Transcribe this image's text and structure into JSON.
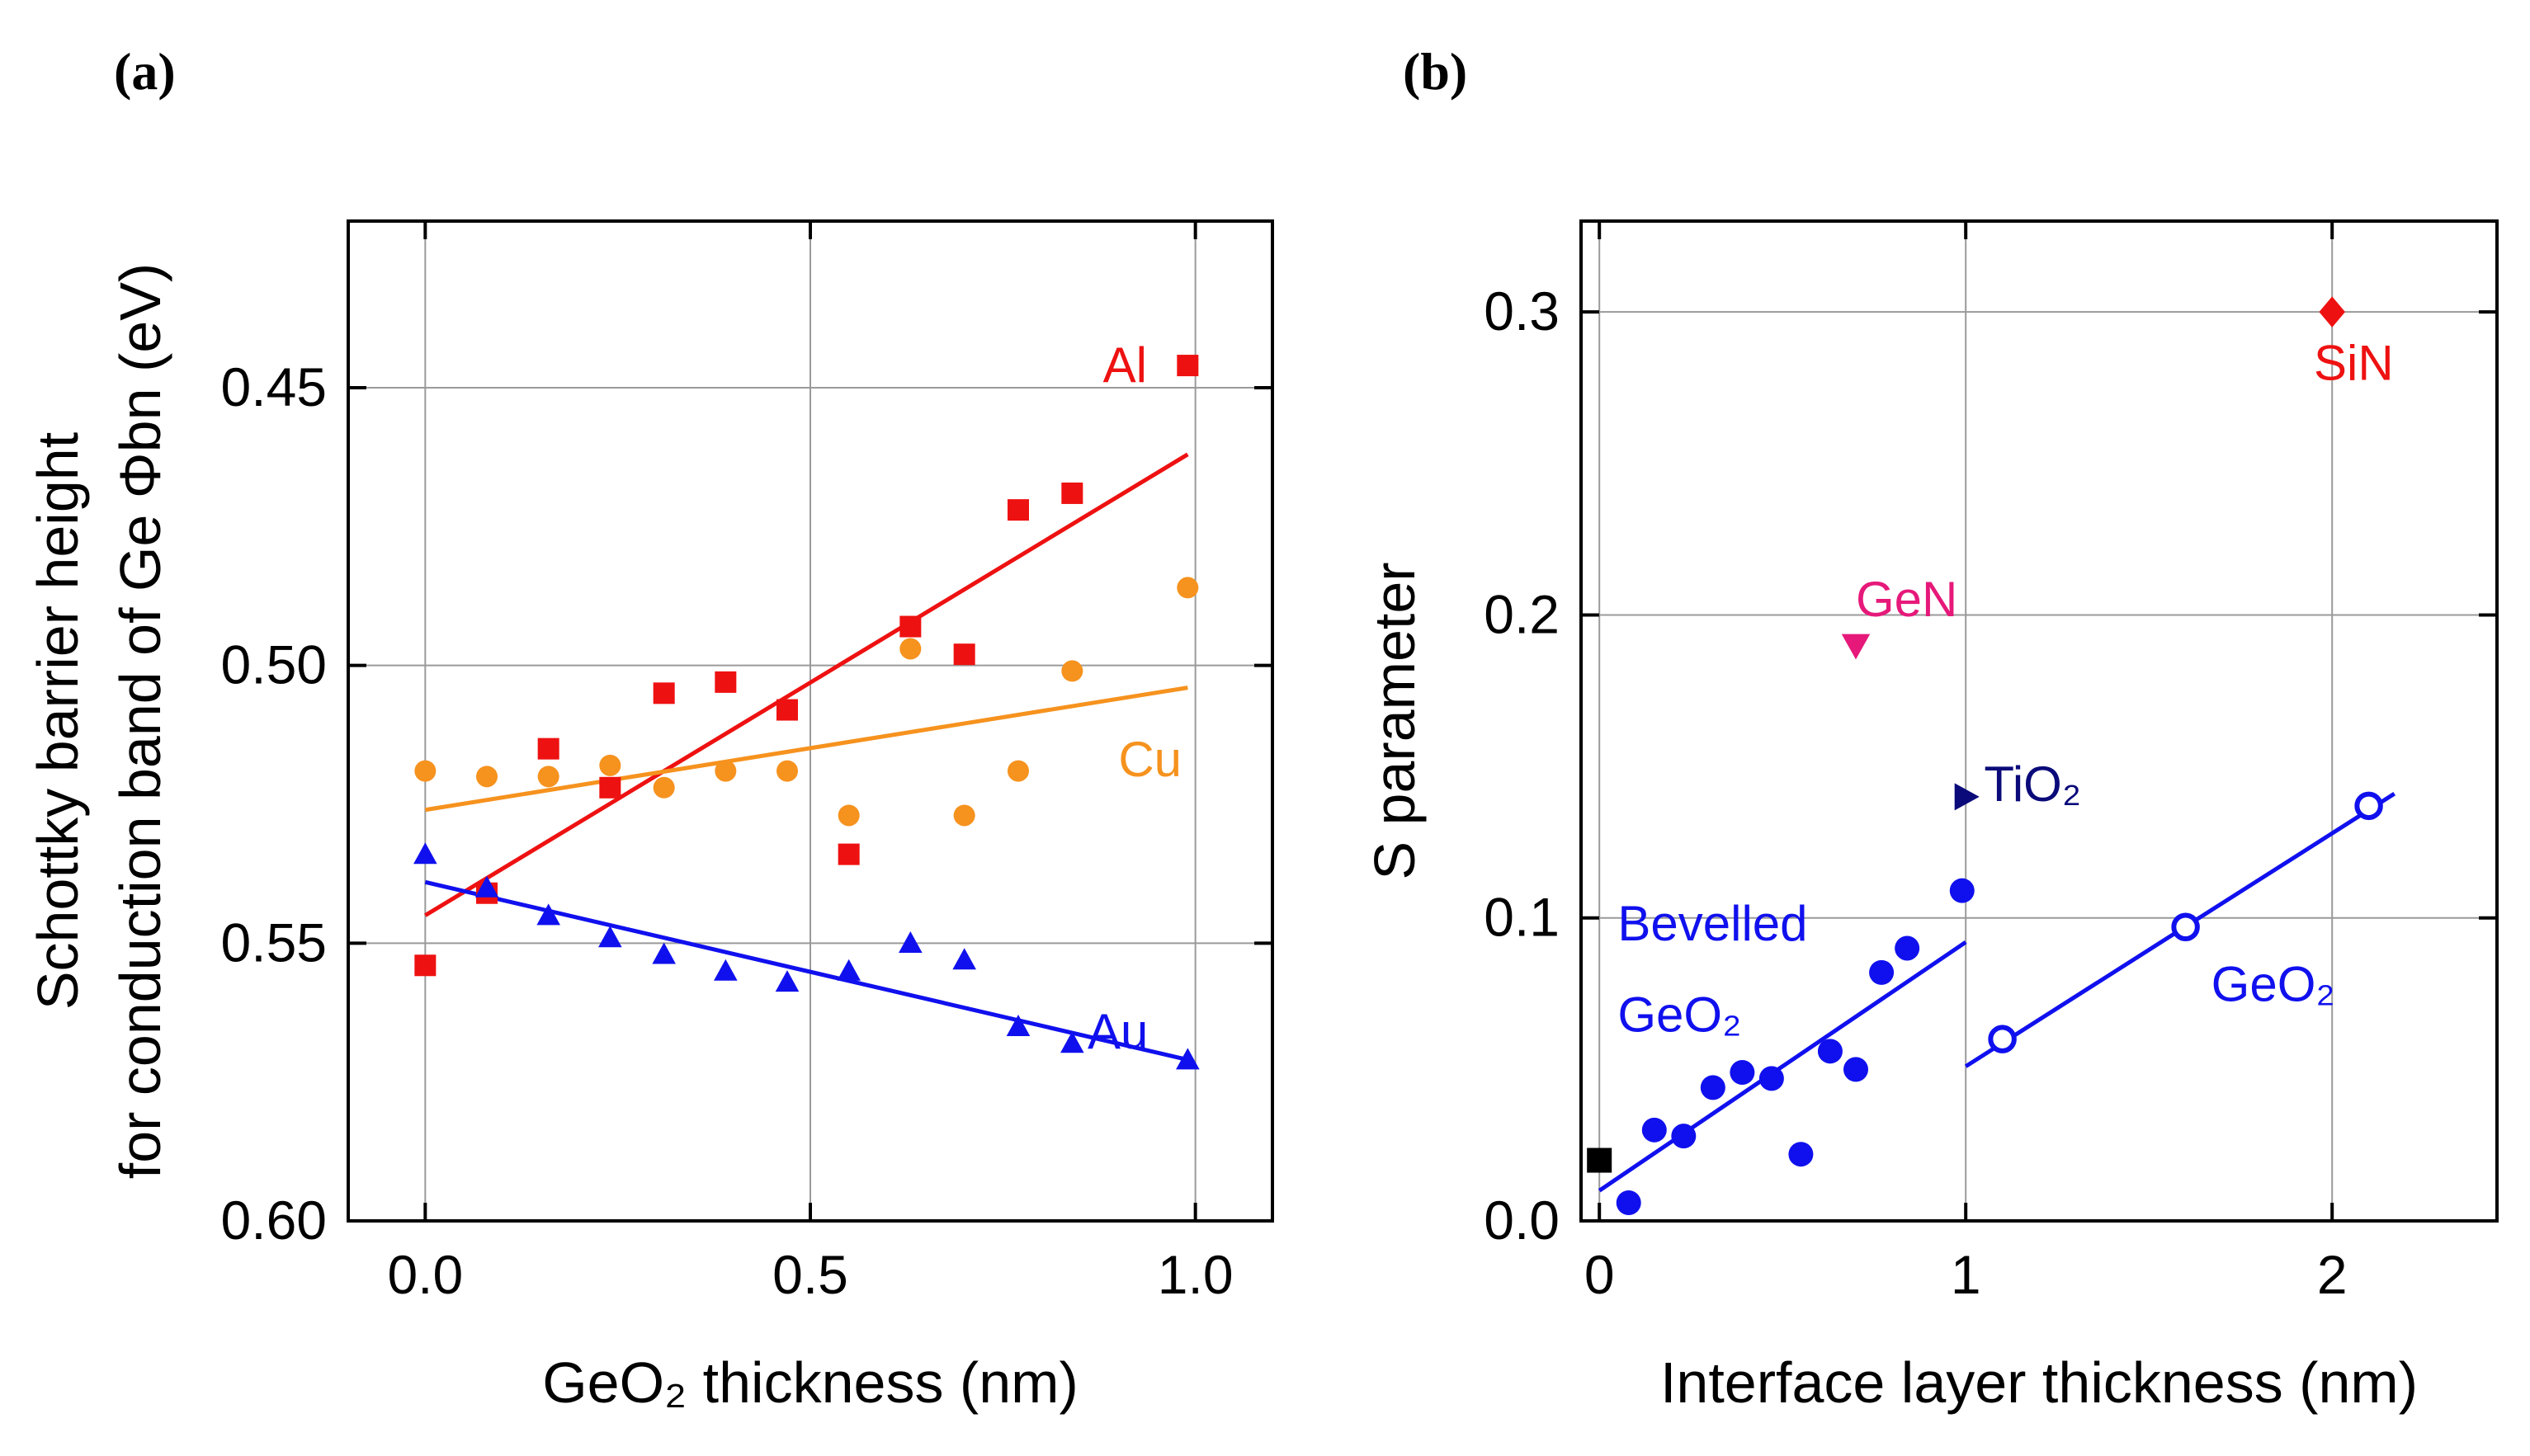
{
  "chart_data": [
    {
      "type": "scatter",
      "panel_label": "(a)",
      "title": "",
      "xlabel": "GeO₂ thickness (nm)",
      "ylabel_line1": "Schottky barrier height",
      "ylabel_line2": "for conduction band of Ge Φbn (eV)",
      "xlim": [
        -0.1,
        1.1
      ],
      "ylim": [
        0.6,
        0.42
      ],
      "y_inverted": true,
      "grid": true,
      "xticks": [
        0.0,
        0.5,
        1.0
      ],
      "xtick_labels": [
        "0.0",
        "0.5",
        "1.0"
      ],
      "yticks": [
        0.45,
        0.5,
        0.55,
        0.6
      ],
      "ytick_labels": [
        "0.45",
        "0.50",
        "0.55",
        "0.60"
      ],
      "series": [
        {
          "name": "Al",
          "color": "#ee1111",
          "marker": "square",
          "x": [
            0.0,
            0.08,
            0.16,
            0.24,
            0.31,
            0.39,
            0.47,
            0.55,
            0.63,
            0.7,
            0.77,
            0.84,
            0.99
          ],
          "y": [
            0.554,
            0.541,
            0.515,
            0.522,
            0.505,
            0.503,
            0.508,
            0.534,
            0.493,
            0.498,
            0.472,
            0.469,
            0.446
          ],
          "fit": {
            "x": [
              0.0,
              0.99
            ],
            "y": [
              0.545,
              0.462
            ]
          }
        },
        {
          "name": "Cu",
          "color": "#f6921e",
          "marker": "circle",
          "x": [
            0.0,
            0.08,
            0.16,
            0.24,
            0.31,
            0.39,
            0.47,
            0.55,
            0.63,
            0.7,
            0.77,
            0.84,
            0.99
          ],
          "y": [
            0.519,
            0.52,
            0.52,
            0.518,
            0.522,
            0.519,
            0.519,
            0.527,
            0.497,
            0.527,
            0.519,
            0.501,
            0.486
          ],
          "fit": {
            "x": [
              0.0,
              0.99
            ],
            "y": [
              0.526,
              0.504
            ]
          }
        },
        {
          "name": "Au",
          "color": "#1010ee",
          "marker": "triangle-up",
          "x": [
            0.0,
            0.08,
            0.16,
            0.24,
            0.31,
            0.39,
            0.47,
            0.55,
            0.63,
            0.7,
            0.77,
            0.84,
            0.99
          ],
          "y": [
            0.534,
            0.54,
            0.545,
            0.549,
            0.552,
            0.555,
            0.557,
            0.555,
            0.55,
            0.553,
            0.565,
            0.568,
            0.571
          ],
          "fit": {
            "x": [
              0.0,
              0.99
            ],
            "y": [
              0.539,
              0.571
            ]
          }
        }
      ],
      "annotations": [
        {
          "text": "Al",
          "x": 0.88,
          "y": 0.446,
          "color": "#ee1111"
        },
        {
          "text": "Cu",
          "x": 0.9,
          "y": 0.517,
          "color": "#f6921e"
        },
        {
          "text": "Au",
          "x": 0.86,
          "y": 0.566,
          "color": "#1010ee"
        }
      ]
    },
    {
      "type": "scatter",
      "panel_label": "(b)",
      "title": "",
      "xlabel": "Interface layer thickness (nm)",
      "ylabel": "S parameter",
      "xlim": [
        -0.05,
        2.45
      ],
      "ylim": [
        0.0,
        0.33
      ],
      "grid": true,
      "xticks": [
        0,
        1,
        2
      ],
      "xtick_labels": [
        "0",
        "1",
        "2"
      ],
      "yticks": [
        0.0,
        0.1,
        0.2,
        0.3
      ],
      "ytick_labels": [
        "0.0",
        "0.1",
        "0.2",
        "0.3"
      ],
      "series": [
        {
          "name": "Bevelled GeO₂",
          "color": "#1010ee",
          "marker": "circle-filled",
          "x": [
            0.08,
            0.15,
            0.23,
            0.31,
            0.39,
            0.47,
            0.55,
            0.63,
            0.7,
            0.77,
            0.84,
            0.99
          ],
          "y": [
            0.006,
            0.03,
            0.028,
            0.044,
            0.049,
            0.047,
            0.022,
            0.056,
            0.05,
            0.082,
            0.09,
            0.109
          ],
          "fit": {
            "x": [
              0.0,
              1.0
            ],
            "y": [
              0.01,
              0.092
            ]
          }
        },
        {
          "name": "GeO₂",
          "color": "#1010ee",
          "marker": "circle-open",
          "x": [
            1.1,
            1.6,
            2.1
          ],
          "y": [
            0.06,
            0.097,
            0.137
          ],
          "fit": {
            "x": [
              1.0,
              2.17
            ],
            "y": [
              0.051,
              0.141
            ]
          }
        },
        {
          "name": "SiN",
          "color": "#ee1111",
          "marker": "diamond",
          "x": [
            2.0
          ],
          "y": [
            0.3
          ]
        },
        {
          "name": "GeN",
          "color": "#e6197a",
          "marker": "triangle-down",
          "x": [
            0.7
          ],
          "y": [
            0.19
          ]
        },
        {
          "name": "TiO₂",
          "color": "#0a0a7a",
          "marker": "triangle-right",
          "x": [
            1.0
          ],
          "y": [
            0.14
          ]
        },
        {
          "name": "",
          "color": "#000000",
          "marker": "square",
          "x": [
            0.0
          ],
          "y": [
            0.02
          ]
        }
      ],
      "annotations": [
        {
          "text": "SiN",
          "x": 1.95,
          "y": 0.283,
          "color": "#ee1111"
        },
        {
          "text": "GeN",
          "x": 0.7,
          "y": 0.205,
          "color": "#e6197a"
        },
        {
          "text": "TiO₂",
          "x": 1.05,
          "y": 0.144,
          "color": "#0a0a7a"
        },
        {
          "text": "Bevelled",
          "x": 0.05,
          "y": 0.098,
          "color": "#1010ee"
        },
        {
          "text": "GeO₂",
          "x": 0.05,
          "y": 0.068,
          "color": "#1010ee"
        },
        {
          "text": "GeO₂",
          "x": 1.67,
          "y": 0.078,
          "color": "#1010ee"
        }
      ]
    }
  ]
}
